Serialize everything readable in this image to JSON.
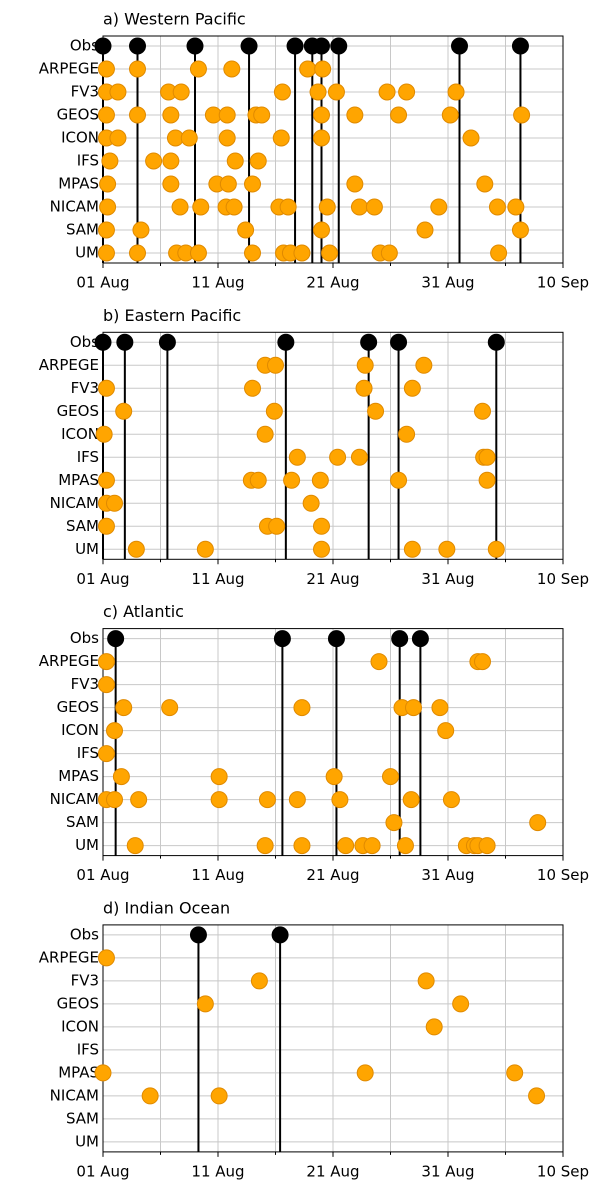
{
  "chart_data": [
    {
      "type": "dot",
      "title": "a) Western Pacific",
      "xlim": [
        0,
        40
      ],
      "xticks": [
        {
          "value": 0,
          "label": "01 Aug"
        },
        {
          "value": 10,
          "label": "11 Aug"
        },
        {
          "value": 20,
          "label": "21 Aug"
        },
        {
          "value": 30,
          "label": "31 Aug"
        },
        {
          "value": 40,
          "label": "10 Sep"
        }
      ],
      "minor_xticks": [
        5,
        15,
        25,
        35
      ],
      "grid": true,
      "series": [
        {
          "name": "Obs",
          "color": "#000000",
          "stem": true,
          "values": [
            0,
            3,
            8,
            12.7,
            16.7,
            18.2,
            19,
            20.5,
            31,
            36.3
          ]
        },
        {
          "name": "ARPEGE",
          "color": "#FFA500",
          "values": [
            0.3,
            3,
            8.3,
            11.2,
            17.8,
            19.1
          ]
        },
        {
          "name": "FV3",
          "color": "#FFA500",
          "values": [
            0.3,
            1.3,
            5.7,
            6.8,
            15.6,
            18.7,
            20.3,
            24.7,
            26.4,
            30.7
          ]
        },
        {
          "name": "GEOS",
          "color": "#FFA500",
          "values": [
            0.3,
            3,
            5.9,
            9.6,
            10.8,
            13.3,
            13.8,
            19,
            21.9,
            25.7,
            30.2,
            36.4
          ]
        },
        {
          "name": "ICON",
          "color": "#FFA500",
          "values": [
            0.3,
            1.3,
            6.3,
            7.5,
            10.8,
            15.5,
            19,
            32
          ]
        },
        {
          "name": "IFS",
          "color": "#FFA500",
          "values": [
            0.6,
            4.4,
            5.9,
            11.5,
            13.5
          ]
        },
        {
          "name": "MPAS",
          "color": "#FFA500",
          "values": [
            0.4,
            5.9,
            9.9,
            10.9,
            13,
            21.9,
            33.2
          ]
        },
        {
          "name": "NICAM",
          "color": "#FFA500",
          "values": [
            0.4,
            6.7,
            8.5,
            10.7,
            11.4,
            15.3,
            16.1,
            19.5,
            22.3,
            23.6,
            29.2,
            34.3,
            35.9
          ]
        },
        {
          "name": "SAM",
          "color": "#FFA500",
          "values": [
            0.3,
            3.3,
            12.4,
            19,
            28,
            36.3
          ]
        },
        {
          "name": "UM",
          "color": "#FFA500",
          "values": [
            0.3,
            3,
            6.4,
            7.2,
            8.3,
            13,
            15.7,
            16.3,
            17.3,
            19.7,
            24.1,
            24.9,
            34.4
          ]
        }
      ]
    },
    {
      "type": "dot",
      "title": "b) Eastern Pacific",
      "xlim": [
        0,
        40
      ],
      "xticks": [
        {
          "value": 0,
          "label": "01 Aug"
        },
        {
          "value": 10,
          "label": "11 Aug"
        },
        {
          "value": 20,
          "label": "21 Aug"
        },
        {
          "value": 30,
          "label": "31 Aug"
        },
        {
          "value": 40,
          "label": "10 Sep"
        }
      ],
      "minor_xticks": [
        5,
        15,
        25,
        35
      ],
      "grid": true,
      "series": [
        {
          "name": "Obs",
          "color": "#000000",
          "stem": true,
          "values": [
            0,
            1.9,
            5.6,
            15.9,
            23.1,
            25.7,
            34.2
          ]
        },
        {
          "name": "ARPEGE",
          "color": "#FFA500",
          "values": [
            14.1,
            15,
            22.8,
            27.9
          ]
        },
        {
          "name": "FV3",
          "color": "#FFA500",
          "values": [
            0.3,
            13,
            22.7,
            26.9
          ]
        },
        {
          "name": "GEOS",
          "color": "#FFA500",
          "values": [
            1.8,
            14.9,
            23.7,
            33
          ]
        },
        {
          "name": "ICON",
          "color": "#FFA500",
          "values": [
            0.1,
            14.1,
            26.4
          ]
        },
        {
          "name": "IFS",
          "color": "#FFA500",
          "values": [
            16.9,
            20.4,
            22.3,
            33.1,
            33.4
          ]
        },
        {
          "name": "MPAS",
          "color": "#FFA500",
          "values": [
            0.3,
            12.9,
            13.5,
            16.4,
            18.9,
            25.7,
            33.4
          ]
        },
        {
          "name": "NICAM",
          "color": "#FFA500",
          "values": [
            0.3,
            1,
            18.1
          ]
        },
        {
          "name": "SAM",
          "color": "#FFA500",
          "values": [
            0.3,
            14.3,
            15.1,
            19
          ]
        },
        {
          "name": "UM",
          "color": "#FFA500",
          "values": [
            2.9,
            8.9,
            19,
            26.9,
            29.9,
            34.2
          ]
        }
      ]
    },
    {
      "type": "dot",
      "title": "c) Atlantic",
      "xlim": [
        0,
        40
      ],
      "xticks": [
        {
          "value": 0,
          "label": "01 Aug"
        },
        {
          "value": 10,
          "label": "11 Aug"
        },
        {
          "value": 20,
          "label": "21 Aug"
        },
        {
          "value": 30,
          "label": "31 Aug"
        },
        {
          "value": 40,
          "label": "10 Sep"
        }
      ],
      "minor_xticks": [
        5,
        15,
        25,
        35
      ],
      "grid": true,
      "series": [
        {
          "name": "Obs",
          "color": "#000000",
          "stem": true,
          "values": [
            1.1,
            15.6,
            20.3,
            25.8,
            27.6
          ]
        },
        {
          "name": "ARPEGE",
          "color": "#FFA500",
          "values": [
            0.3,
            24,
            32.6,
            33
          ]
        },
        {
          "name": "FV3",
          "color": "#FFA500",
          "values": [
            0.3
          ]
        },
        {
          "name": "GEOS",
          "color": "#FFA500",
          "values": [
            1.8,
            5.8,
            17.3,
            26,
            27,
            29.3
          ]
        },
        {
          "name": "ICON",
          "color": "#FFA500",
          "values": [
            1,
            29.8
          ]
        },
        {
          "name": "IFS",
          "color": "#FFA500",
          "values": [
            0.3
          ]
        },
        {
          "name": "MPAS",
          "color": "#FFA500",
          "values": [
            1.6,
            10.1,
            20.1,
            25
          ]
        },
        {
          "name": "NICAM",
          "color": "#FFA500",
          "values": [
            0.3,
            1,
            3.1,
            10.1,
            14.3,
            16.9,
            20.6,
            26.8,
            30.3
          ]
        },
        {
          "name": "SAM",
          "color": "#FFA500",
          "values": [
            25.3,
            37.8
          ]
        },
        {
          "name": "UM",
          "color": "#FFA500",
          "values": [
            2.8,
            14.1,
            17.3,
            21.1,
            22.6,
            23.4,
            26.3,
            31.6,
            32.3,
            32.6,
            33.4
          ]
        }
      ]
    },
    {
      "type": "dot",
      "title": "d) Indian Ocean",
      "xlim": [
        0,
        40
      ],
      "xticks": [
        {
          "value": 0,
          "label": "01 Aug"
        },
        {
          "value": 10,
          "label": "11 Aug"
        },
        {
          "value": 20,
          "label": "21 Aug"
        },
        {
          "value": 30,
          "label": "31 Aug"
        },
        {
          "value": 40,
          "label": "10 Sep"
        }
      ],
      "minor_xticks": [
        5,
        15,
        25,
        35
      ],
      "grid": true,
      "series": [
        {
          "name": "Obs",
          "color": "#000000",
          "stem": true,
          "values": [
            8.3,
            15.4
          ]
        },
        {
          "name": "ARPEGE",
          "color": "#FFA500",
          "values": [
            0.3
          ]
        },
        {
          "name": "FV3",
          "color": "#FFA500",
          "values": [
            13.6,
            28.1
          ]
        },
        {
          "name": "GEOS",
          "color": "#FFA500",
          "values": [
            8.9,
            31.1
          ]
        },
        {
          "name": "ICON",
          "color": "#FFA500",
          "values": [
            28.8
          ]
        },
        {
          "name": "IFS",
          "color": "#FFA500",
          "values": []
        },
        {
          "name": "MPAS",
          "color": "#FFA500",
          "values": [
            0,
            22.8,
            35.8
          ]
        },
        {
          "name": "NICAM",
          "color": "#FFA500",
          "values": [
            4.1,
            10.1,
            37.7
          ]
        },
        {
          "name": "SAM",
          "color": "#FFA500",
          "values": []
        },
        {
          "name": "UM",
          "color": "#FFA500",
          "values": []
        }
      ]
    }
  ]
}
